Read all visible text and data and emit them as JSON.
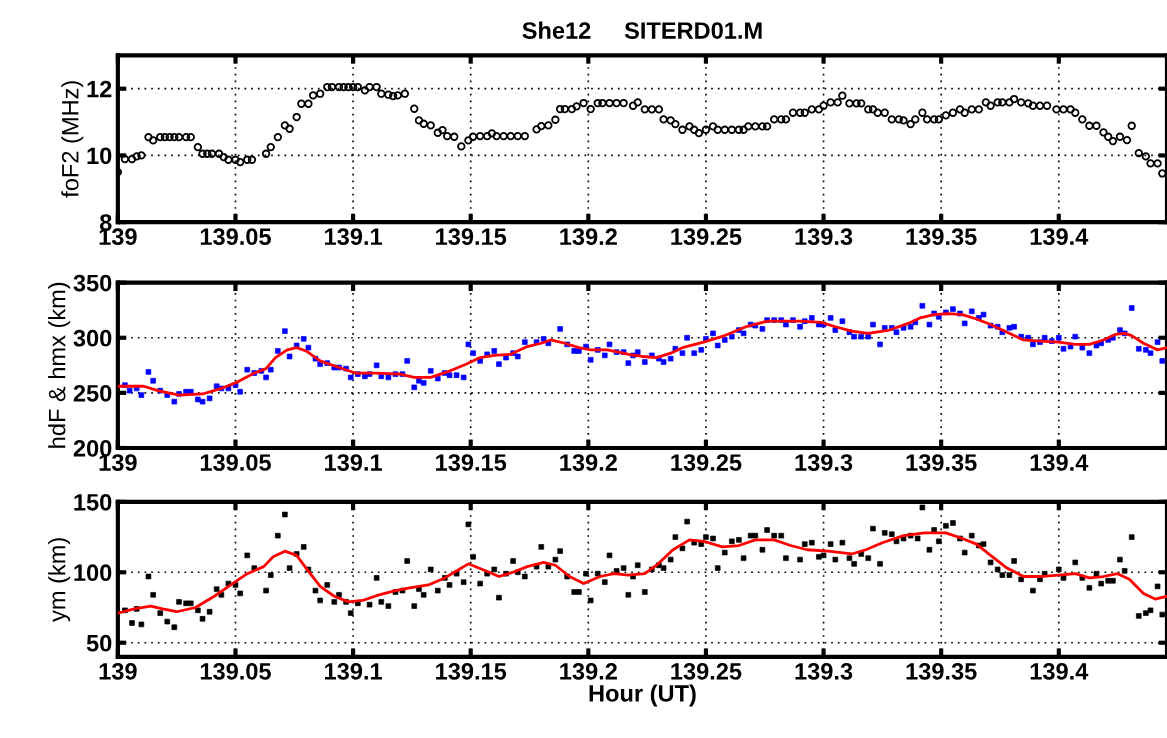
{
  "chart_data": [
    {
      "type": "scatter",
      "title": "She12     SITERD01.M",
      "ylabel": "foF2 (MHz)",
      "xlim": [
        139,
        139.446
      ],
      "xticks": [
        139,
        139.05,
        139.1,
        139.15,
        139.2,
        139.25,
        139.3,
        139.35,
        139.4
      ],
      "ylim": [
        8,
        13
      ],
      "yticks": [
        8,
        10,
        12
      ],
      "grid": true,
      "series": [
        {
          "color": "#000000",
          "marker": "circle",
          "x": [
            139.0,
            139.003,
            139.006,
            139.008,
            139.01,
            139.013,
            139.015,
            139.018,
            139.02,
            139.022,
            139.024,
            139.026,
            139.029,
            139.031,
            139.034,
            139.036,
            139.038,
            139.04,
            139.043,
            139.045,
            139.047,
            139.05,
            139.052,
            139.055,
            139.057,
            139.063,
            139.065,
            139.068,
            139.071,
            139.073,
            139.076,
            139.078,
            139.081,
            139.083,
            139.086,
            139.089,
            139.091,
            139.094,
            139.096,
            139.098,
            139.1,
            139.102,
            139.105,
            139.107,
            139.11,
            139.112,
            139.115,
            139.117,
            139.119,
            139.122,
            139.126,
            139.128,
            139.13,
            139.133,
            139.136,
            139.138,
            139.14,
            139.143,
            139.146,
            139.149,
            139.151,
            139.154,
            139.157,
            139.159,
            139.161,
            139.164,
            139.167,
            139.17,
            139.173,
            139.178,
            139.18,
            139.183,
            139.186,
            139.188,
            139.19,
            139.193,
            139.195,
            139.198,
            139.201,
            139.204,
            139.206,
            139.209,
            139.212,
            139.215,
            139.219,
            139.221,
            139.224,
            139.227,
            139.23,
            139.232,
            139.235,
            139.237,
            139.24,
            139.243,
            139.245,
            139.247,
            139.25,
            139.253,
            139.255,
            139.258,
            139.261,
            139.264,
            139.266,
            139.268,
            139.271,
            139.274,
            139.276,
            139.279,
            139.282,
            139.284,
            139.287,
            139.29,
            139.292,
            139.295,
            139.298,
            139.3,
            139.303,
            139.306,
            139.308,
            139.311,
            139.314,
            139.316,
            139.319,
            139.321,
            139.323,
            139.326,
            139.329,
            139.332,
            139.334,
            139.337,
            139.339,
            139.342,
            139.344,
            139.347,
            139.349,
            139.352,
            139.355,
            139.358,
            139.36,
            139.363,
            139.366,
            139.369,
            139.371,
            139.374,
            139.376,
            139.379,
            139.381,
            139.384,
            139.387,
            139.389,
            139.392,
            139.395,
            139.399,
            139.402,
            139.405,
            139.407,
            139.41,
            139.413,
            139.416,
            139.419,
            139.421,
            139.423,
            139.426,
            139.429,
            139.431,
            139.434,
            139.437,
            139.439,
            139.442,
            139.444
          ],
          "values": [
            9.5,
            9.89,
            9.89,
            9.97,
            10.0,
            10.55,
            10.45,
            10.55,
            10.55,
            10.55,
            10.55,
            10.55,
            10.55,
            10.55,
            10.25,
            10.05,
            10.05,
            10.05,
            10.05,
            9.95,
            9.87,
            9.87,
            9.8,
            9.87,
            9.87,
            10.05,
            10.25,
            10.55,
            10.9,
            10.8,
            11.15,
            11.55,
            11.55,
            11.8,
            11.85,
            12.05,
            12.05,
            12.05,
            12.05,
            12.05,
            12.05,
            12.05,
            11.95,
            12.05,
            12.05,
            11.85,
            11.82,
            11.78,
            11.8,
            11.85,
            11.4,
            11.05,
            10.95,
            10.9,
            10.68,
            10.76,
            10.58,
            10.56,
            10.27,
            10.45,
            10.56,
            10.58,
            10.58,
            10.66,
            10.58,
            10.58,
            10.58,
            10.58,
            10.58,
            10.78,
            10.88,
            10.9,
            11.07,
            11.39,
            11.39,
            11.39,
            11.47,
            11.57,
            11.39,
            11.57,
            11.57,
            11.57,
            11.57,
            11.57,
            11.49,
            11.59,
            11.38,
            11.38,
            11.38,
            11.08,
            11.05,
            10.94,
            10.77,
            10.87,
            10.77,
            10.67,
            10.77,
            10.87,
            10.77,
            10.77,
            10.77,
            10.77,
            10.77,
            10.87,
            10.87,
            10.87,
            10.87,
            11.08,
            11.08,
            11.08,
            11.28,
            11.28,
            11.28,
            11.38,
            11.38,
            11.49,
            11.59,
            11.59,
            11.79,
            11.56,
            11.56,
            11.56,
            11.38,
            11.38,
            11.28,
            11.28,
            11.08,
            11.08,
            11.05,
            10.94,
            11.08,
            11.28,
            11.08,
            11.08,
            11.08,
            11.2,
            11.28,
            11.38,
            11.28,
            11.38,
            11.38,
            11.59,
            11.49,
            11.59,
            11.59,
            11.59,
            11.69,
            11.59,
            11.56,
            11.49,
            11.49,
            11.49,
            11.38,
            11.38,
            11.38,
            11.28,
            11.08,
            10.89,
            10.89,
            10.69,
            10.56,
            10.43,
            10.56,
            10.46,
            10.89,
            10.07,
            9.97,
            9.76,
            9.76,
            9.46
          ]
        }
      ]
    },
    {
      "type": "scatter",
      "ylabel": "hdF & hmx (km)",
      "xlim": [
        139,
        139.446
      ],
      "xticks": [
        139,
        139.05,
        139.1,
        139.15,
        139.2,
        139.25,
        139.3,
        139.35,
        139.4
      ],
      "ylim": [
        200,
        350
      ],
      "yticks": [
        200,
        250,
        300,
        350
      ],
      "grid": true,
      "series": [
        {
          "color": "#0000ff",
          "marker": "square",
          "x": [
            139.003,
            139.005,
            139.008,
            139.01,
            139.013,
            139.015,
            139.018,
            139.021,
            139.024,
            139.026,
            139.029,
            139.031,
            139.034,
            139.036,
            139.039,
            139.042,
            139.044,
            139.047,
            139.05,
            139.052,
            139.055,
            139.058,
            139.061,
            139.063,
            139.065,
            139.068,
            139.071,
            139.073,
            139.076,
            139.079,
            139.081,
            139.084,
            139.086,
            139.089,
            139.092,
            139.094,
            139.097,
            139.099,
            139.102,
            139.105,
            139.107,
            139.11,
            139.112,
            139.115,
            139.118,
            139.121,
            139.123,
            139.126,
            139.128,
            139.13,
            139.133,
            139.136,
            139.139,
            139.141,
            139.144,
            139.147,
            139.149,
            139.151,
            139.154,
            139.157,
            139.16,
            139.162,
            139.165,
            139.168,
            139.17,
            139.173,
            139.178,
            139.181,
            139.183,
            139.188,
            139.191,
            139.194,
            139.196,
            139.199,
            139.201,
            139.204,
            139.207,
            139.209,
            139.212,
            139.215,
            139.217,
            139.219,
            139.221,
            139.224,
            139.227,
            139.23,
            139.232,
            139.235,
            139.237,
            139.24,
            139.242,
            139.245,
            139.248,
            139.25,
            139.253,
            139.255,
            139.258,
            139.261,
            139.264,
            139.266,
            139.269,
            139.271,
            139.274,
            139.276,
            139.279,
            139.282,
            139.284,
            139.287,
            139.29,
            139.292,
            139.295,
            139.298,
            139.3,
            139.303,
            139.305,
            139.308,
            139.311,
            139.313,
            139.316,
            139.319,
            139.321,
            139.324,
            139.326,
            139.329,
            139.331,
            139.334,
            139.337,
            139.339,
            139.342,
            139.345,
            139.347,
            139.349,
            139.352,
            139.355,
            139.358,
            139.36,
            139.363,
            139.366,
            139.368,
            139.371,
            139.374,
            139.376,
            139.379,
            139.381,
            139.384,
            139.387,
            139.389,
            139.392,
            139.394,
            139.397,
            139.4,
            139.402,
            139.405,
            139.407,
            139.41,
            139.413,
            139.416,
            139.418,
            139.421,
            139.423,
            139.426,
            139.428,
            139.431,
            139.434,
            139.437,
            139.439,
            139.442,
            139.444
          ],
          "values": [
            257,
            252,
            254,
            248,
            269,
            261,
            252,
            248,
            242,
            249,
            251,
            251,
            244,
            242,
            245,
            256,
            254,
            254,
            257,
            251,
            271,
            268,
            270,
            264,
            271,
            288,
            306,
            283,
            293,
            299,
            291,
            281,
            276,
            277,
            273,
            273,
            272,
            264,
            267,
            265,
            267,
            275,
            265,
            264,
            267,
            267,
            279,
            255,
            261,
            259,
            270,
            263,
            268,
            266,
            266,
            264,
            294,
            286,
            279,
            285,
            288,
            276,
            282,
            286,
            283,
            296,
            296,
            299,
            295,
            308,
            294,
            288,
            288,
            292,
            280,
            289,
            284,
            294,
            287,
            287,
            277,
            284,
            287,
            278,
            284,
            281,
            278,
            281,
            290,
            286,
            300,
            286,
            289,
            299,
            304,
            293,
            298,
            301,
            307,
            304,
            312,
            311,
            308,
            316,
            316,
            316,
            312,
            316,
            310,
            315,
            318,
            312,
            312,
            318,
            307,
            315,
            305,
            301,
            301,
            301,
            312,
            294,
            309,
            309,
            305,
            309,
            310,
            314,
            329,
            312,
            322,
            319,
            323,
            326,
            322,
            313,
            324,
            318,
            321,
            311,
            310,
            305,
            309,
            310,
            301,
            300,
            294,
            296,
            300,
            297,
            300,
            290,
            292,
            301,
            291,
            286,
            293,
            295,
            298,
            300,
            307,
            304,
            327,
            290,
            289,
            286,
            296,
            279
          ]
        },
        {
          "type": "line",
          "color": "#ff0000",
          "marker": "none",
          "x": [
            139.0,
            139.011,
            139.017,
            139.026,
            139.036,
            139.044,
            139.051,
            139.058,
            139.063,
            139.067,
            139.072,
            139.076,
            139.08,
            139.086,
            139.094,
            139.101,
            139.11,
            139.12,
            139.126,
            139.133,
            139.14,
            139.148,
            139.154,
            139.16,
            139.167,
            139.174,
            139.18,
            139.184,
            139.19,
            139.196,
            139.201,
            139.208,
            139.215,
            139.217,
            139.223,
            139.229,
            139.235,
            139.24,
            139.249,
            139.258,
            139.267,
            139.276,
            139.281,
            139.29,
            139.299,
            139.305,
            139.312,
            139.319,
            139.328,
            139.336,
            139.341,
            139.347,
            139.353,
            139.359,
            139.365,
            139.371,
            139.378,
            139.385,
            139.392,
            139.4,
            139.407,
            139.413,
            139.419,
            139.424,
            139.428,
            139.431,
            139.436,
            139.442,
            139.446
          ],
          "values": [
            256,
            256,
            252,
            248,
            249,
            254,
            260,
            268,
            272,
            282,
            289,
            291,
            288,
            279,
            273,
            268,
            268,
            267,
            264,
            264,
            269,
            276,
            282,
            284,
            285,
            292,
            295,
            298,
            295,
            291,
            289,
            289,
            286,
            285,
            283,
            282,
            286,
            291,
            296,
            302,
            310,
            315,
            315,
            315,
            314,
            310,
            306,
            304,
            307,
            313,
            318,
            321,
            322,
            321,
            317,
            312,
            305,
            298,
            297,
            296,
            294,
            294,
            298,
            303,
            304,
            302,
            295,
            289,
            291
          ]
        }
      ]
    },
    {
      "type": "scatter",
      "ylabel": "ym (km)",
      "xlabel": "Hour (UT)",
      "xlim": [
        139,
        139.446
      ],
      "xticks": [
        139,
        139.05,
        139.1,
        139.15,
        139.2,
        139.25,
        139.3,
        139.35,
        139.4
      ],
      "ylim": [
        40,
        150
      ],
      "yticks": [
        50,
        100,
        150
      ],
      "grid": true,
      "series": [
        {
          "color": "#000000",
          "marker": "square",
          "x": [
            139.003,
            139.006,
            139.008,
            139.01,
            139.013,
            139.015,
            139.018,
            139.021,
            139.024,
            139.026,
            139.029,
            139.031,
            139.034,
            139.036,
            139.039,
            139.042,
            139.044,
            139.047,
            139.05,
            139.052,
            139.055,
            139.058,
            139.063,
            139.065,
            139.068,
            139.071,
            139.073,
            139.076,
            139.079,
            139.081,
            139.084,
            139.086,
            139.089,
            139.092,
            139.094,
            139.097,
            139.099,
            139.102,
            139.107,
            139.11,
            139.112,
            139.115,
            139.118,
            139.121,
            139.123,
            139.126,
            139.128,
            139.13,
            139.133,
            139.136,
            139.139,
            139.141,
            139.144,
            139.147,
            139.149,
            139.151,
            139.154,
            139.157,
            139.16,
            139.162,
            139.165,
            139.168,
            139.17,
            139.173,
            139.178,
            139.18,
            139.183,
            139.186,
            139.188,
            139.191,
            139.194,
            139.196,
            139.199,
            139.201,
            139.204,
            139.207,
            139.209,
            139.212,
            139.215,
            139.217,
            139.219,
            139.221,
            139.224,
            139.227,
            139.23,
            139.232,
            139.235,
            139.237,
            139.24,
            139.242,
            139.245,
            139.248,
            139.25,
            139.253,
            139.255,
            139.258,
            139.261,
            139.264,
            139.266,
            139.269,
            139.271,
            139.274,
            139.276,
            139.279,
            139.282,
            139.284,
            139.29,
            139.292,
            139.295,
            139.298,
            139.3,
            139.303,
            139.305,
            139.308,
            139.311,
            139.313,
            139.316,
            139.319,
            139.321,
            139.324,
            139.326,
            139.329,
            139.331,
            139.334,
            139.337,
            139.34,
            139.342,
            139.345,
            139.347,
            139.349,
            139.352,
            139.355,
            139.358,
            139.36,
            139.363,
            139.366,
            139.368,
            139.371,
            139.374,
            139.376,
            139.379,
            139.381,
            139.384,
            139.389,
            139.392,
            139.394,
            139.4,
            139.402,
            139.407,
            139.41,
            139.413,
            139.416,
            139.418,
            139.421,
            139.423,
            139.426,
            139.428,
            139.431,
            139.434,
            139.437,
            139.439,
            139.442,
            139.444
          ],
          "values": [
            73,
            64,
            74,
            63,
            97,
            84,
            71,
            65,
            61,
            79,
            78,
            78,
            73,
            67,
            72,
            88,
            84,
            92,
            91,
            85,
            112,
            103,
            87,
            98,
            126,
            141,
            103,
            113,
            118,
            102,
            87,
            80,
            91,
            79,
            84,
            79,
            71,
            78,
            77,
            96,
            79,
            76,
            86,
            87,
            108,
            76,
            88,
            84,
            102,
            87,
            96,
            91,
            99,
            93,
            134,
            111,
            92,
            99,
            102,
            82,
            99,
            108,
            100,
            97,
            104,
            118,
            104,
            109,
            115,
            97,
            86,
            86,
            99,
            80,
            99,
            93,
            112,
            101,
            103,
            84,
            97,
            105,
            86,
            102,
            105,
            103,
            109,
            125,
            117,
            136,
            121,
            120,
            125,
            124,
            103,
            114,
            122,
            123,
            110,
            126,
            126,
            116,
            130,
            126,
            126,
            110,
            109,
            120,
            121,
            111,
            112,
            120,
            109,
            121,
            110,
            106,
            113,
            110,
            131,
            106,
            128,
            127,
            122,
            124,
            126,
            124,
            146,
            116,
            130,
            122,
            133,
            135,
            124,
            114,
            126,
            119,
            120,
            107,
            102,
            98,
            98,
            108,
            95,
            87,
            95,
            99,
            102,
            96,
            107,
            96,
            89,
            99,
            92,
            94,
            94,
            109,
            101,
            125,
            69,
            71,
            73,
            90,
            70
          ]
        },
        {
          "type": "line",
          "color": "#ff0000",
          "marker": "none",
          "x": [
            139.0,
            139.007,
            139.014,
            139.019,
            139.025,
            139.033,
            139.041,
            139.048,
            139.055,
            139.062,
            139.066,
            139.071,
            139.076,
            139.08,
            139.086,
            139.092,
            139.098,
            139.104,
            139.111,
            139.118,
            139.124,
            139.132,
            139.139,
            139.145,
            139.149,
            139.155,
            139.162,
            139.168,
            139.174,
            139.181,
            139.186,
            139.192,
            139.198,
            139.205,
            139.211,
            139.217,
            139.224,
            139.229,
            139.236,
            139.243,
            139.249,
            139.257,
            139.264,
            139.271,
            139.279,
            139.286,
            139.293,
            139.302,
            139.312,
            139.318,
            139.325,
            139.334,
            139.343,
            139.352,
            139.359,
            139.365,
            139.371,
            139.378,
            139.385,
            139.392,
            139.4,
            139.407,
            139.413,
            139.419,
            139.425,
            139.43,
            139.436,
            139.441,
            139.446
          ],
          "values": [
            71,
            74,
            76,
            74,
            72,
            75,
            83,
            91,
            99,
            104,
            111,
            115,
            112,
            103,
            90,
            83,
            79,
            80,
            84,
            87,
            89,
            91,
            96,
            102,
            106,
            102,
            97,
            100,
            104,
            107,
            105,
            97,
            92,
            97,
            99,
            98,
            99,
            105,
            116,
            123,
            122,
            118,
            119,
            123,
            123,
            119,
            116,
            115,
            113,
            116,
            121,
            126,
            128,
            128,
            124,
            120,
            112,
            103,
            97,
            97,
            98,
            99,
            96,
            97,
            99,
            95,
            85,
            81,
            83
          ]
        }
      ]
    }
  ]
}
